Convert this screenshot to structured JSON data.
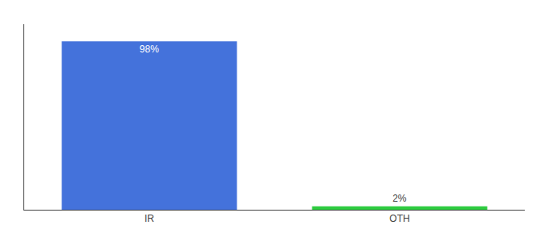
{
  "chart_data": {
    "type": "bar",
    "categories": [
      "IR",
      "OTH"
    ],
    "values": [
      98,
      2
    ],
    "value_labels": [
      "98%",
      "2%"
    ],
    "colors": [
      "#4472db",
      "#2ecc40"
    ],
    "ylim": [
      0,
      108
    ],
    "data_labels": true,
    "tick_labels": "x",
    "grid": false
  }
}
